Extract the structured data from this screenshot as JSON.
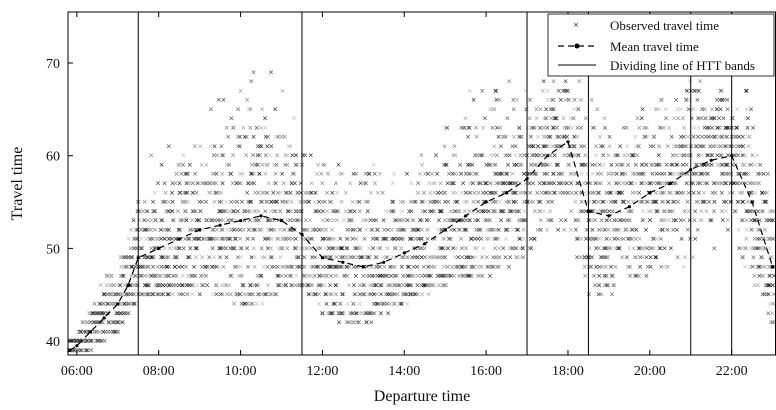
{
  "chart_data": {
    "type": "scatter",
    "xlabel": "Departure time",
    "ylabel": "Travel time",
    "xlim": [
      "05:47",
      "23:05"
    ],
    "ylim": [
      38.5,
      75.5
    ],
    "x_ticks": [
      "06:00",
      "08:00",
      "10:00",
      "12:00",
      "14:00",
      "16:00",
      "18:00",
      "20:00",
      "22:00"
    ],
    "y_ticks": [
      40,
      50,
      60,
      70
    ],
    "grid": false,
    "legend_position": "top-right",
    "legend": {
      "observed": "Observed travel time",
      "mean": "Mean travel time",
      "divider": "Dividing line of HTT bands"
    },
    "dividing_lines": [
      "07:30",
      "11:30",
      "17:00",
      "18:30",
      "21:00",
      "22:00"
    ],
    "mean_series": {
      "name": "Mean travel time",
      "x": [
        "05:50",
        "06:00",
        "06:20",
        "06:40",
        "07:00",
        "07:15",
        "07:30",
        "08:00",
        "08:30",
        "09:00",
        "09:30",
        "10:00",
        "10:30",
        "11:00",
        "11:30",
        "12:00",
        "12:30",
        "13:00",
        "13:30",
        "14:00",
        "14:30",
        "15:00",
        "15:30",
        "16:00",
        "16:30",
        "17:00",
        "17:30",
        "18:00",
        "18:30",
        "19:00",
        "19:30",
        "20:00",
        "20:30",
        "21:00",
        "21:30",
        "22:00",
        "22:30",
        "23:00"
      ],
      "y": [
        39,
        39.5,
        41,
        42.5,
        44,
        46,
        49,
        50,
        51,
        52,
        52.5,
        53,
        53.5,
        53,
        51.5,
        49,
        48.5,
        48,
        48.5,
        49.5,
        50.5,
        52,
        53.5,
        55,
        56,
        57.5,
        60,
        61.5,
        54,
        53.5,
        54.5,
        56,
        57,
        58.5,
        59.5,
        60,
        55,
        48
      ]
    },
    "observed_profile": {
      "name": "Observed travel time",
      "x": [
        "05:50",
        "06:00",
        "06:20",
        "06:40",
        "07:00",
        "07:15",
        "07:30",
        "08:00",
        "08:30",
        "09:00",
        "09:30",
        "10:00",
        "10:30",
        "11:00",
        "11:30",
        "12:00",
        "12:30",
        "13:00",
        "13:30",
        "14:00",
        "14:30",
        "15:00",
        "15:30",
        "16:00",
        "16:30",
        "17:00",
        "17:30",
        "18:00",
        "18:30",
        "19:00",
        "19:30",
        "20:00",
        "20:30",
        "21:00",
        "21:30",
        "22:00",
        "22:30",
        "23:00"
      ],
      "min": [
        39,
        39,
        39,
        40,
        41,
        43,
        44,
        45,
        45,
        45,
        45,
        44,
        44,
        45,
        46,
        43,
        42,
        42,
        43,
        44,
        45,
        46,
        47,
        47,
        48,
        49,
        52,
        52,
        45,
        45,
        46,
        47,
        48,
        48,
        50,
        51,
        46,
        41
      ],
      "max": [
        40,
        41,
        44,
        47,
        50,
        54,
        60,
        63,
        66,
        67,
        68,
        69,
        69,
        69,
        67,
        62,
        63,
        66,
        62,
        63,
        64,
        66,
        70,
        68,
        68,
        70,
        70,
        70,
        68,
        64,
        65,
        66,
        67,
        68,
        68,
        68,
        67,
        58
      ]
    }
  }
}
